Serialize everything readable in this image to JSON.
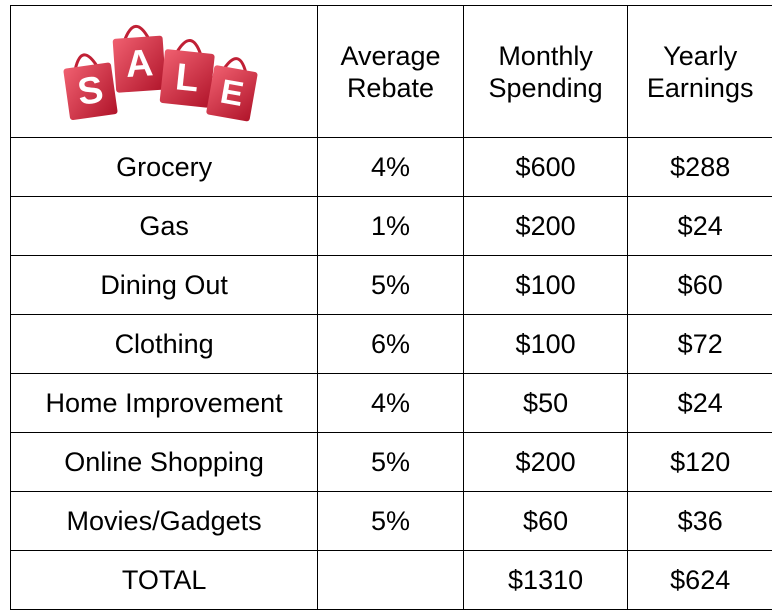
{
  "header": {
    "logo_letters": [
      "S",
      "A",
      "L",
      "E"
    ],
    "columns": [
      "Average Rebate",
      "Monthly Spending",
      "Yearly Earnings"
    ]
  },
  "table": {
    "rows": [
      [
        "Grocery",
        "4%",
        "$600",
        "$288"
      ],
      [
        "Gas",
        "1%",
        "$200",
        "$24"
      ],
      [
        "Dining Out",
        "5%",
        "$100",
        "$60"
      ],
      [
        "Clothing",
        "6%",
        "$100",
        "$72"
      ],
      [
        "Home Improvement",
        "4%",
        "$50",
        "$24"
      ],
      [
        "Online Shopping",
        "5%",
        "$200",
        "$120"
      ],
      [
        "Movies/Gadgets",
        "5%",
        "$60",
        "$36"
      ]
    ],
    "total": {
      "label": "TOTAL",
      "monthly": "$1310",
      "yearly": "$624"
    }
  }
}
